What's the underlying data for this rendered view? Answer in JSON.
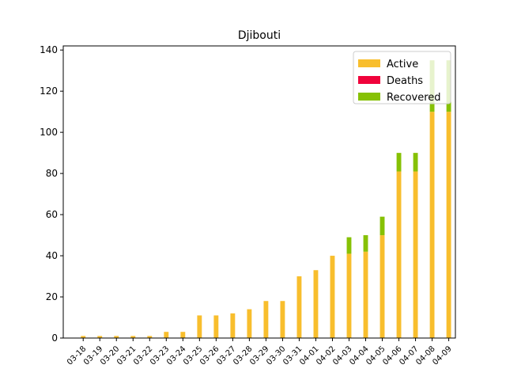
{
  "chart_data": {
    "type": "bar",
    "stacked": true,
    "title": "Djibouti",
    "xlabel": "",
    "ylabel": "",
    "categories": [
      "03-18",
      "03-19",
      "03-20",
      "03-21",
      "03-22",
      "03-23",
      "03-24",
      "03-25",
      "03-26",
      "03-27",
      "03-28",
      "03-29",
      "03-30",
      "03-31",
      "04-01",
      "04-02",
      "04-03",
      "04-04",
      "04-05",
      "04-06",
      "04-07",
      "04-08",
      "04-09"
    ],
    "series": [
      {
        "name": "Active",
        "color": "#f8be2d",
        "values": [
          1,
          1,
          1,
          1,
          1,
          3,
          3,
          11,
          11,
          12,
          14,
          18,
          18,
          30,
          33,
          40,
          41,
          42,
          50,
          81,
          81,
          110,
          110
        ]
      },
      {
        "name": "Deaths",
        "color": "#f0023b",
        "values": [
          0,
          0,
          0,
          0,
          0,
          0,
          0,
          0,
          0,
          0,
          0,
          0,
          0,
          0,
          0,
          0,
          0,
          0,
          0,
          0,
          0,
          0,
          0
        ]
      },
      {
        "name": "Recovered",
        "color": "#86c105",
        "values": [
          0,
          0,
          0,
          0,
          0,
          0,
          0,
          0,
          0,
          0,
          0,
          0,
          0,
          0,
          0,
          0,
          8,
          8,
          9,
          9,
          9,
          25,
          25
        ]
      }
    ],
    "ylim": [
      0,
      142
    ],
    "yticks": [
      0,
      20,
      40,
      60,
      80,
      100,
      120,
      140
    ],
    "grid": false,
    "legend_position": "top-right"
  }
}
